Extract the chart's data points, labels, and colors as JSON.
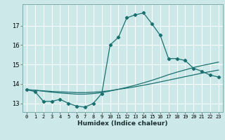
{
  "xlabel": "Humidex (Indice chaleur)",
  "bg_color": "#cce8e8",
  "grid_color": "#ffffff",
  "line_color": "#1a7070",
  "x_values": [
    0,
    1,
    2,
    3,
    4,
    5,
    6,
    7,
    8,
    9,
    10,
    11,
    12,
    13,
    14,
    15,
    16,
    17,
    18,
    19,
    20,
    21,
    22,
    23
  ],
  "y_main": [
    13.7,
    13.6,
    13.1,
    13.1,
    13.2,
    13.0,
    12.85,
    12.8,
    13.0,
    13.5,
    16.0,
    16.4,
    17.4,
    17.55,
    17.65,
    17.1,
    16.5,
    15.3,
    15.3,
    15.2,
    14.8,
    14.65,
    14.45,
    14.35
  ],
  "y_line2": [
    13.7,
    13.67,
    13.62,
    13.57,
    13.53,
    13.5,
    13.47,
    13.47,
    13.5,
    13.55,
    13.63,
    13.72,
    13.82,
    13.93,
    14.05,
    14.18,
    14.32,
    14.47,
    14.6,
    14.72,
    14.84,
    14.94,
    15.03,
    15.12
  ],
  "y_line3": [
    13.7,
    13.67,
    13.64,
    13.61,
    13.59,
    13.57,
    13.55,
    13.55,
    13.57,
    13.6,
    13.65,
    13.72,
    13.78,
    13.85,
    13.93,
    14.01,
    14.1,
    14.19,
    14.28,
    14.37,
    14.46,
    14.55,
    14.63,
    14.71
  ],
  "ylim": [
    12.55,
    18.1
  ],
  "yticks": [
    13,
    14,
    15,
    16,
    17
  ],
  "xlim": [
    -0.5,
    23.5
  ],
  "xtick_fontsize": 5.0,
  "ytick_fontsize": 6.0,
  "xlabel_fontsize": 6.5
}
